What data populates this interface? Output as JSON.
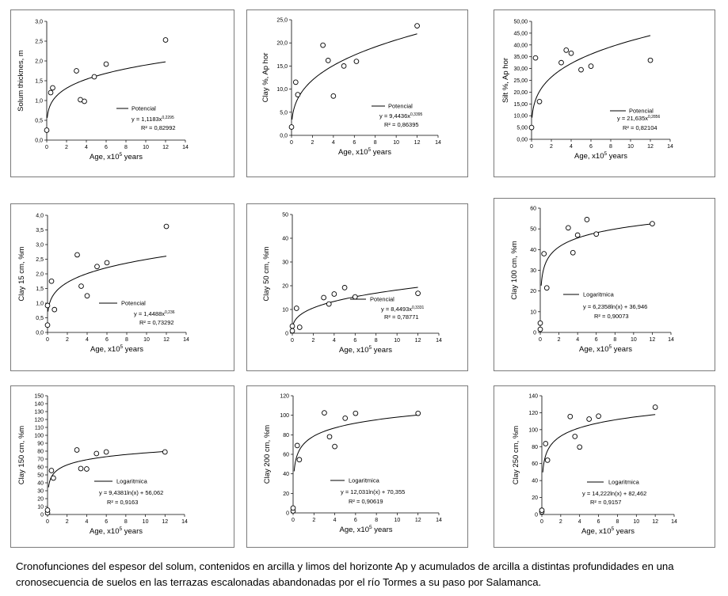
{
  "caption": {
    "line1": "Cronofunciones del espesor del solum, contenidos en arcilla y limos del horizonte Ap y acumulados de arcilla a distintas profundidades en una",
    "line2": "cronosecuencia de suelos en las  terrazas escalonadas abandonadas por el río Tormes a su paso por Salamanca."
  },
  "chart_data": [
    {
      "type": "scatter",
      "fit": "power",
      "ylabel": "Solum thicknes,  m",
      "xlabel": "Age, x10",
      "xlabel_sup": "5",
      "xlabel_suffix": " years",
      "legend": "Potencial",
      "equation": "y = 1,1183x",
      "equation_exp": "0,2295",
      "r2": "R² = 0,82992",
      "fit_a": 1.1183,
      "fit_b": 0.2295,
      "fit_c": 0,
      "fit_start": 0.05,
      "xlim": [
        0,
        14
      ],
      "ylim": [
        0,
        3
      ],
      "xticks": [
        "0",
        "2",
        "4",
        "6",
        "8",
        "10",
        "12",
        "14"
      ],
      "yticks": [
        "0,0",
        "0,5",
        "1,0",
        "1,5",
        "2,0",
        "2,5",
        "3,0"
      ],
      "x": [
        0,
        0.4,
        0.6,
        3,
        3.4,
        3.8,
        4.8,
        6,
        12
      ],
      "y": [
        0.25,
        1.2,
        1.32,
        1.75,
        1.02,
        0.98,
        1.6,
        1.92,
        2.53
      ]
    },
    {
      "type": "scatter",
      "fit": "power",
      "ylabel": "Clay %,  Ap hor",
      "xlabel": "Age, x10",
      "xlabel_sup": "5",
      "xlabel_suffix": " years",
      "legend": "Potencial",
      "equation": "y = 9,4436x",
      "equation_exp": "0,3395",
      "r2": "R² = 0,86395",
      "fit_a": 9.4436,
      "fit_b": 0.3395,
      "fit_c": 0,
      "fit_start": 0.05,
      "xlim": [
        0,
        14
      ],
      "ylim": [
        0,
        25
      ],
      "xticks": [
        "0",
        "2",
        "4",
        "6",
        "8",
        "10",
        "12",
        "14"
      ],
      "yticks": [
        "0,0",
        "5,0",
        "10,0",
        "15,0",
        "20,0",
        "25,0"
      ],
      "x": [
        0,
        0.4,
        0.6,
        3,
        3.5,
        4,
        5,
        6.2,
        12
      ],
      "y": [
        1.8,
        11.5,
        8.8,
        19.5,
        16.2,
        8.5,
        15,
        16,
        23.7
      ]
    },
    {
      "type": "scatter",
      "fit": "power",
      "ylabel": "Silt %,  Ap hor",
      "xlabel": "Age, x10",
      "xlabel_sup": "5",
      "xlabel_suffix": " years",
      "legend": "Potencial",
      "equation": "y = 21,635x",
      "equation_exp": "0,2856",
      "r2": "R² = 0,82104",
      "fit_a": 21.635,
      "fit_b": 0.2856,
      "fit_c": 0,
      "fit_start": 0.05,
      "xlim": [
        0,
        14
      ],
      "ylim": [
        0,
        50
      ],
      "xticks": [
        "0",
        "2",
        "4",
        "6",
        "8",
        "10",
        "12",
        "14"
      ],
      "yticks": [
        "0,00",
        "5,00",
        "10,00",
        "15,00",
        "20,00",
        "25,00",
        "30,00",
        "35,00",
        "40,00",
        "45,00",
        "50,00"
      ],
      "x": [
        0,
        0.4,
        0.8,
        3,
        3.5,
        4,
        5,
        6,
        12
      ],
      "y": [
        5,
        34.5,
        16,
        32.5,
        37.8,
        36.5,
        29.5,
        31,
        33.5
      ]
    },
    {
      "type": "scatter",
      "fit": "power",
      "ylabel": "Clay 15 cm,  %m",
      "xlabel": "Age, x10",
      "xlabel_sup": "5",
      "xlabel_suffix": " years",
      "legend": "Potencial",
      "equation": "y = 1,4488x",
      "equation_exp": "0,236",
      "r2": "R² = 0,73292",
      "fit_a": 1.4488,
      "fit_b": 0.236,
      "fit_c": 0,
      "fit_start": 0.05,
      "xlim": [
        0,
        14
      ],
      "ylim": [
        0,
        4
      ],
      "xticks": [
        "0",
        "2",
        "4",
        "6",
        "8",
        "10",
        "12",
        "14"
      ],
      "yticks": [
        "0,0",
        "0,5",
        "1,0",
        "1,5",
        "2,0",
        "2,5",
        "3,0",
        "3,5",
        "4,0"
      ],
      "x": [
        0,
        0,
        0.4,
        0.7,
        3,
        3.4,
        4,
        5,
        6,
        12
      ],
      "y": [
        0.25,
        0.92,
        1.75,
        0.78,
        2.65,
        1.58,
        1.25,
        2.25,
        2.38,
        3.62
      ]
    },
    {
      "type": "scatter",
      "fit": "power",
      "ylabel": "Clay 50 cm,  %m",
      "xlabel": "Age, x10",
      "xlabel_sup": "5",
      "xlabel_suffix": " years",
      "legend": "Potencial",
      "equation": "y = 8,4493x",
      "equation_exp": "0,3331",
      "r2": "R² = 0,78771",
      "fit_a": 8.4493,
      "fit_b": 0.3331,
      "fit_c": 0,
      "fit_start": 0.05,
      "xlim": [
        0,
        14
      ],
      "ylim": [
        0,
        50
      ],
      "xticks": [
        "0",
        "2",
        "4",
        "6",
        "8",
        "10",
        "12",
        "14"
      ],
      "yticks": [
        "0",
        "10",
        "20",
        "30",
        "40",
        "50"
      ],
      "x": [
        0,
        0,
        0.4,
        0.7,
        3,
        3.5,
        4,
        5,
        6,
        12
      ],
      "y": [
        1,
        3,
        10.5,
        2.5,
        15,
        12.3,
        16.5,
        19.2,
        15.3,
        16.8
      ]
    },
    {
      "type": "scatter",
      "fit": "log",
      "ylabel": "Clay 100 cm,  %m",
      "xlabel": "Age, x10",
      "xlabel_sup": "5",
      "xlabel_suffix": " years",
      "legend": "Logaritmica",
      "equation": "y = 6,2358ln(x) + 36,946",
      "equation_exp": "",
      "r2": "R² = 0,90073",
      "fit_a": 6.2358,
      "fit_b": 0,
      "fit_c": 36.946,
      "fit_start": 0.1,
      "xlim": [
        0,
        14
      ],
      "ylim": [
        0,
        60
      ],
      "xticks": [
        "0",
        "2",
        "4",
        "6",
        "8",
        "10",
        "12",
        "14"
      ],
      "yticks": [
        "0",
        "10",
        "20",
        "30",
        "40",
        "50",
        "60"
      ],
      "x": [
        0,
        0,
        0.4,
        0.7,
        3,
        3.5,
        4,
        5,
        6,
        12
      ],
      "y": [
        1.5,
        4.5,
        38,
        21.5,
        50.5,
        38.5,
        47,
        54.5,
        47.5,
        52.5
      ]
    },
    {
      "type": "scatter",
      "fit": "log",
      "ylabel": "Clay 150 cm,  %m",
      "xlabel": "Age, x10",
      "xlabel_sup": "5",
      "xlabel_suffix": " years",
      "legend": "Logaritmica",
      "equation": "y = 9,4381ln(x) + 56,062",
      "equation_exp": "",
      "r2": "R² = 0,9163",
      "fit_a": 9.4381,
      "fit_b": 0,
      "fit_c": 56.062,
      "fit_start": 0.1,
      "xlim": [
        0,
        14
      ],
      "ylim": [
        0,
        150
      ],
      "xticks": [
        "0",
        "2",
        "4",
        "6",
        "8",
        "10",
        "12",
        "14"
      ],
      "yticks": [
        "0",
        "10",
        "20",
        "30",
        "40",
        "50",
        "60",
        "70",
        "80",
        "90",
        "100",
        "110",
        "120",
        "130",
        "140",
        "150"
      ],
      "x": [
        0,
        0,
        0.4,
        0.6,
        3,
        3.4,
        4,
        5,
        6,
        12
      ],
      "y": [
        2,
        5.5,
        55.5,
        46,
        81.5,
        58,
        57.5,
        77,
        79,
        79
      ]
    },
    {
      "type": "scatter",
      "fit": "log",
      "ylabel": "Clay 200 cm,  %m",
      "xlabel": "Age, x10",
      "xlabel_sup": "5",
      "xlabel_suffix": " years",
      "legend": "Logaritmica",
      "equation": "y = 12,031ln(x) + 70,355",
      "equation_exp": "",
      "r2": "R² = 0,90619",
      "fit_a": 12.031,
      "fit_b": 0,
      "fit_c": 70.355,
      "fit_start": 0.1,
      "xlim": [
        0,
        14
      ],
      "ylim": [
        0,
        120
      ],
      "xticks": [
        "0",
        "2",
        "4",
        "6",
        "8",
        "10",
        "12",
        "14"
      ],
      "yticks": [
        "0",
        "20",
        "40",
        "60",
        "80",
        "100",
        "120"
      ],
      "x": [
        0,
        0,
        0.4,
        0.6,
        3,
        3.5,
        4,
        5,
        6,
        12
      ],
      "y": [
        2,
        5,
        69,
        54.5,
        102.5,
        78,
        68,
        97,
        102,
        102
      ]
    },
    {
      "type": "scatter",
      "fit": "log",
      "ylabel": "Clay 250 cm,  %m",
      "xlabel": "Age, x10",
      "xlabel_sup": "5",
      "xlabel_suffix": " years",
      "legend": "Logaritmica",
      "equation": "y = 14,222ln(x) + 82,462",
      "equation_exp": "",
      "r2": "R² = 0,9157",
      "fit_a": 14.222,
      "fit_b": 0,
      "fit_c": 82.462,
      "fit_start": 0.1,
      "xlim": [
        0,
        14
      ],
      "ylim": [
        0,
        140
      ],
      "xticks": [
        "0",
        "2",
        "4",
        "6",
        "8",
        "10",
        "12",
        "14"
      ],
      "yticks": [
        "0",
        "20",
        "40",
        "60",
        "80",
        "100",
        "120",
        "140"
      ],
      "x": [
        0,
        0,
        0.4,
        0.6,
        3,
        3.5,
        4,
        5,
        6,
        12
      ],
      "y": [
        3,
        5,
        83.5,
        64,
        115.5,
        92,
        79.5,
        112.5,
        116,
        126.5
      ]
    }
  ]
}
